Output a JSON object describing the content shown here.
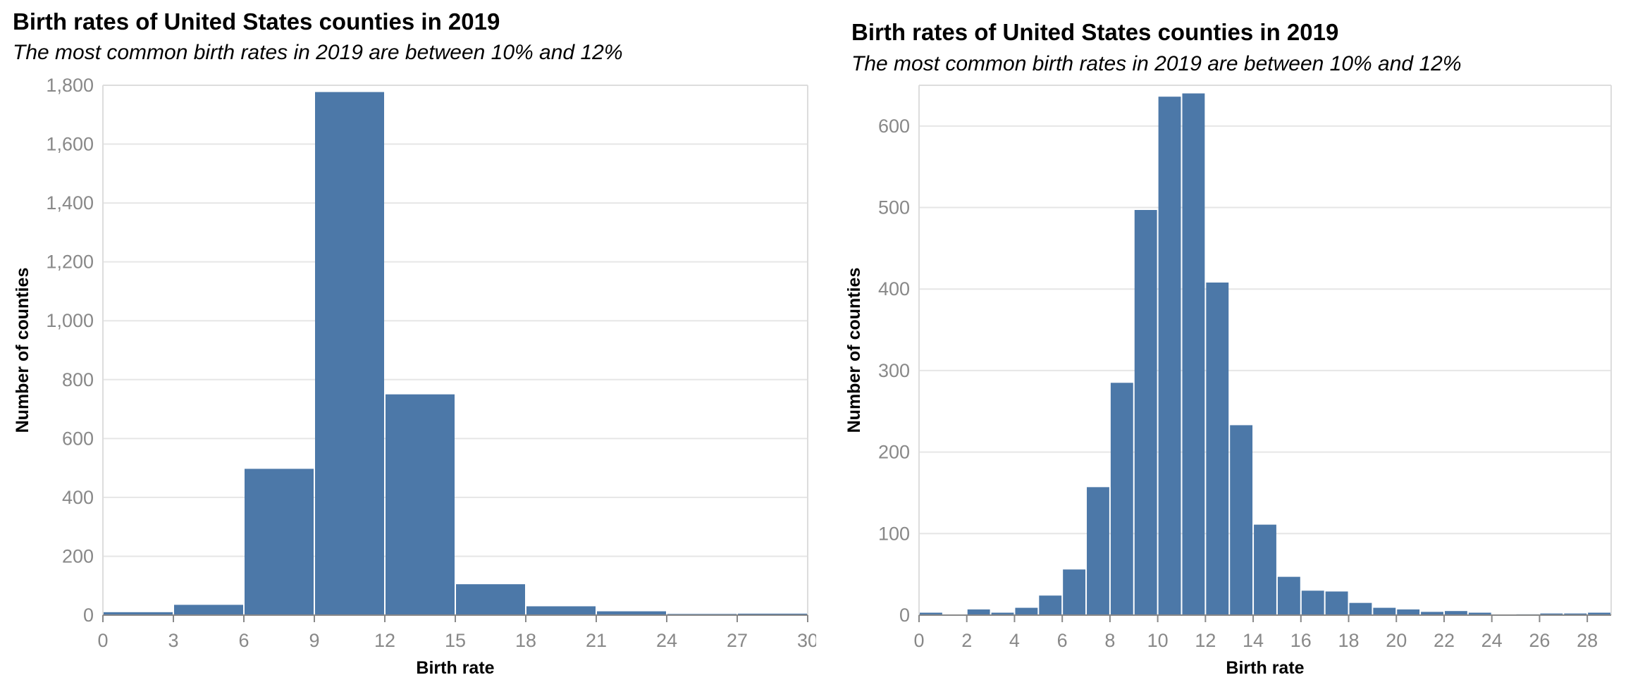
{
  "chart_data": [
    {
      "type": "bar",
      "title": "Birth rates of United States counties in 2019",
      "subtitle": "The most common birth rates in 2019 are between 10% and 12%",
      "xlabel": "Birth rate",
      "ylabel": "Number of counties",
      "bin_width": 3,
      "x": [
        0,
        3,
        6,
        9,
        12,
        15,
        18,
        21,
        24,
        27
      ],
      "values": [
        10,
        35,
        497,
        1777,
        750,
        105,
        30,
        13,
        4,
        5
      ],
      "xlim": [
        0,
        30
      ],
      "ylim": [
        0,
        1800
      ],
      "x_ticks": [
        "0",
        "3",
        "6",
        "9",
        "12",
        "15",
        "18",
        "21",
        "24",
        "27",
        "30"
      ],
      "y_ticks": [
        "0",
        "200",
        "400",
        "600",
        "800",
        "1,000",
        "1,200",
        "1,400",
        "1,600",
        "1,800"
      ],
      "grid": true,
      "color": "#4c78a8"
    },
    {
      "type": "bar",
      "title": "Birth rates of United States counties in 2019",
      "subtitle": "The most common birth rates in 2019 are between 10% and 12%",
      "xlabel": "Birth rate",
      "ylabel": "Number of counties",
      "bin_width": 1,
      "x": [
        0,
        2,
        3,
        4,
        5,
        6,
        7,
        8,
        9,
        10,
        11,
        12,
        13,
        14,
        15,
        16,
        17,
        18,
        19,
        20,
        21,
        22,
        23,
        25,
        26,
        27,
        28
      ],
      "values": [
        3,
        7,
        3,
        9,
        24,
        56,
        157,
        285,
        497,
        636,
        640,
        408,
        233,
        111,
        47,
        30,
        29,
        15,
        9,
        7,
        4,
        5,
        3,
        1,
        2,
        2,
        3
      ],
      "xlim": [
        0,
        29
      ],
      "ylim": [
        0,
        650
      ],
      "x_ticks": [
        "0",
        "2",
        "4",
        "6",
        "8",
        "10",
        "12",
        "14",
        "16",
        "18",
        "20",
        "22",
        "24",
        "26",
        "28"
      ],
      "y_ticks": [
        "0",
        "100",
        "200",
        "300",
        "400",
        "500",
        "600"
      ],
      "grid": true,
      "color": "#4c78a8"
    }
  ]
}
